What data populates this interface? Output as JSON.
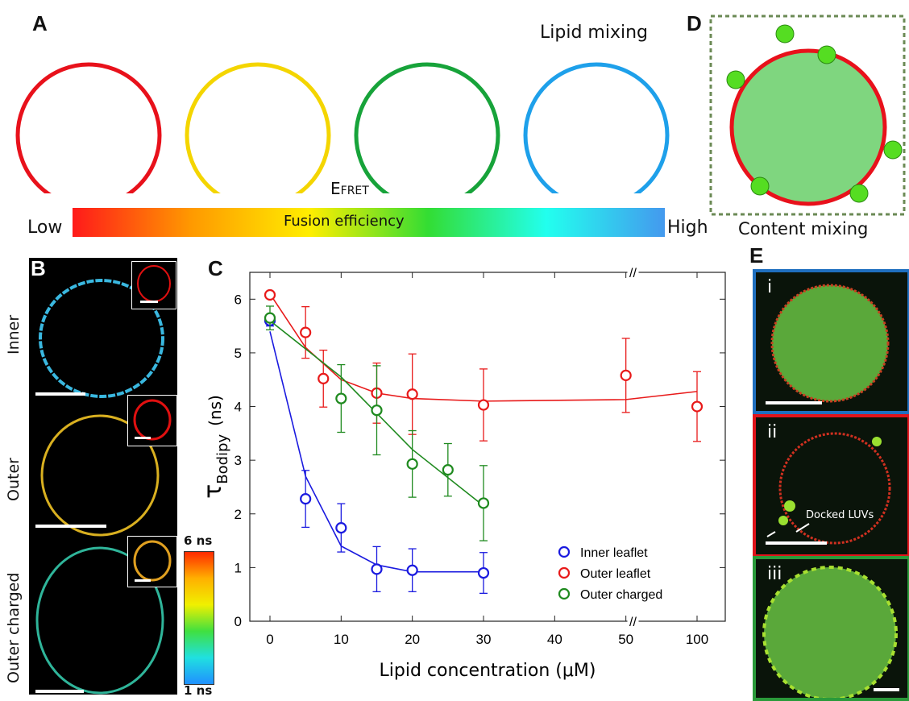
{
  "panel_a": {
    "letter": "A",
    "title": "Lipid mixing",
    "efret_main": "E",
    "efret_sub": "FRET",
    "bar_label": "Fusion efficiency",
    "low": "Low",
    "high": "High",
    "ring_colors": [
      "#e8111b",
      "#f4d500",
      "#17a33a",
      "#1ea0ea"
    ],
    "gradient": [
      "#ff1a1a",
      "#ff9900",
      "#ffee00",
      "#33dd33",
      "#22ffee",
      "#4499ee"
    ]
  },
  "panel_d": {
    "letter": "D",
    "caption": "Content mixing",
    "fill_color": "#7fd67f",
    "rim_color": "#e8111b",
    "dot_color": "#55dd22"
  },
  "panel_b": {
    "letter": "B",
    "rows": [
      "Inner",
      "Outer",
      "Outer charged"
    ],
    "colorbar_max": "6 ns",
    "colorbar_min": "1 ns"
  },
  "panel_e": {
    "letter": "E",
    "tiles": [
      {
        "numeral": "i",
        "border_color": "#1f6fbf"
      },
      {
        "numeral": "ii",
        "border_color": "#e0141b"
      },
      {
        "numeral": "iii",
        "border_color": "#2a9a3a"
      }
    ],
    "annotation": "Docked LUVs"
  },
  "panel_c": {
    "letter": "C",
    "axis_break": "//"
  },
  "chart_data": {
    "type": "scatter",
    "xlabel": "Lipid concentration (μM)",
    "ylabel_main": "τ",
    "ylabel_sub": "Bodipy",
    "ylabel_unit": "(ns)",
    "ylim": [
      0,
      6.5
    ],
    "yticks": [
      0,
      1,
      2,
      3,
      4,
      5,
      6
    ],
    "xticks": [
      0,
      10,
      20,
      30,
      40,
      50,
      100
    ],
    "x_break": "between 50 and 100",
    "legend_position": "bottom-right",
    "series": [
      {
        "name": "Inner leaflet",
        "color": "#1a1adf",
        "x": [
          0,
          5,
          10,
          15,
          20,
          30
        ],
        "y": [
          5.6,
          2.28,
          1.74,
          0.97,
          0.95,
          0.9
        ],
        "err": [
          0.1,
          0.53,
          0.45,
          0.42,
          0.4,
          0.38
        ],
        "fit_x": [
          0,
          5,
          10,
          15,
          20,
          30
        ],
        "fit_y": [
          5.4,
          2.7,
          1.4,
          1.05,
          0.92,
          0.92
        ]
      },
      {
        "name": "Outer leaflet",
        "color": "#e81a1a",
        "x": [
          0,
          5,
          7.5,
          15,
          20,
          30,
          50,
          100
        ],
        "y": [
          6.08,
          5.38,
          4.52,
          4.25,
          4.23,
          4.03,
          4.58,
          4.0
        ],
        "err": [
          0.05,
          0.48,
          0.53,
          0.56,
          0.75,
          0.67,
          0.69,
          0.65
        ],
        "fit_x": [
          0,
          5,
          10,
          15,
          20,
          30,
          50,
          100
        ],
        "fit_y": [
          6.1,
          5.1,
          4.5,
          4.25,
          4.15,
          4.1,
          4.13,
          4.28
        ]
      },
      {
        "name": "Outer charged",
        "color": "#1f8a1f",
        "x": [
          0,
          10,
          15,
          20,
          25,
          30
        ],
        "y": [
          5.65,
          4.15,
          3.93,
          2.93,
          2.82,
          2.2
        ],
        "err": [
          0.22,
          0.63,
          0.83,
          0.62,
          0.49,
          0.7
        ],
        "fit_x": [
          0,
          10,
          20,
          30
        ],
        "fit_y": [
          5.6,
          4.55,
          3.2,
          2.15
        ]
      }
    ]
  }
}
